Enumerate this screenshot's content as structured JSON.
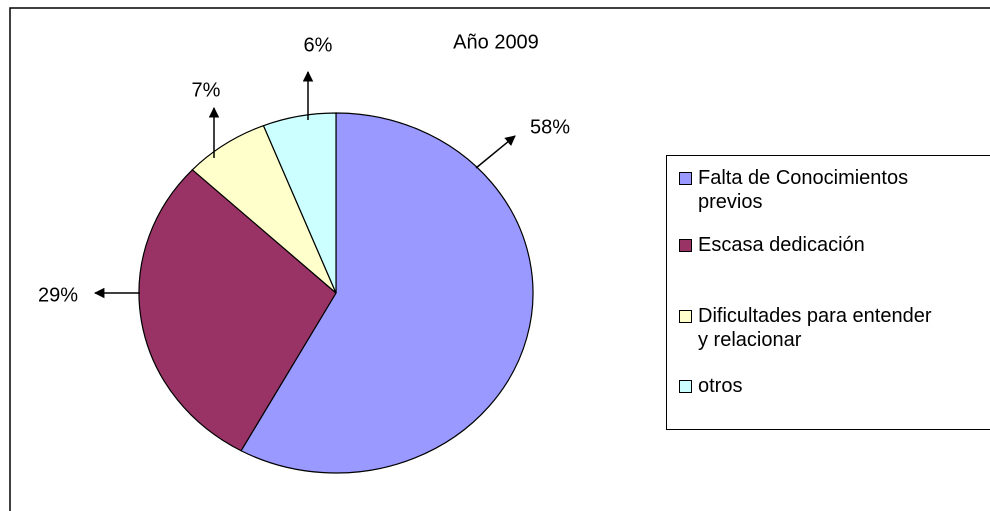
{
  "chart_data": {
    "type": "pie",
    "title": "Año 2009",
    "categories": [
      "Falta de Conocimientos previos",
      "Escasa dedicación",
      "Dificultades para entender y relacionar",
      "otros"
    ],
    "values": [
      58,
      29,
      7,
      6
    ],
    "value_labels": [
      "58%",
      "29%",
      "7%",
      "6%"
    ],
    "colors": [
      "#9999ff",
      "#993366",
      "#ffffcc",
      "#ccffff"
    ],
    "legend": "right"
  }
}
